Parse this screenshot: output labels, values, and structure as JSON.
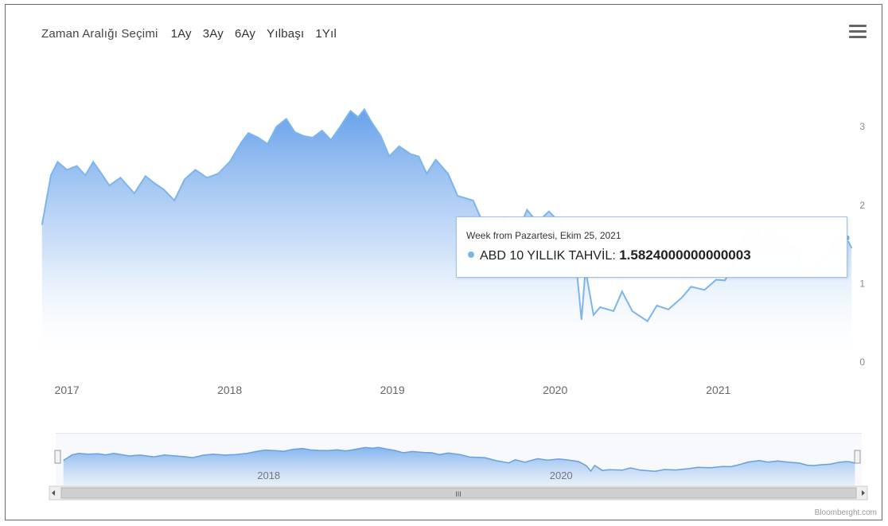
{
  "range_selector": {
    "label": "Zaman Aralığı Seçimi",
    "buttons": [
      "1Ay",
      "3Ay",
      "6Ay",
      "Yılbaşı",
      "1Yıl"
    ]
  },
  "tooltip": {
    "header": "Week from Pazartesi, Ekim 25, 2021",
    "series_label": "ABD 10 YILLIK TAHVİL:",
    "value": "1.5824000000000003"
  },
  "credits": "Bloomberght.com",
  "navigator": {
    "labels": [
      {
        "text": "2018",
        "date": "2018-03-01"
      },
      {
        "text": "2020",
        "date": "2020-01-01"
      }
    ],
    "scrollbar_grip": "III"
  },
  "colors": {
    "line": "#7cb5ec",
    "fill_top": "#6fa7ec",
    "fill_bottom": "#ffffff",
    "axis_text": "#666666"
  },
  "chart_data": {
    "type": "area",
    "series": [
      {
        "name": "ABD 10 YILLIK TAHVİL",
        "points": [
          [
            "2016-11-15",
            1.75
          ],
          [
            "2016-12-05",
            2.38
          ],
          [
            "2016-12-20",
            2.55
          ],
          [
            "2017-01-10",
            2.45
          ],
          [
            "2017-02-01",
            2.5
          ],
          [
            "2017-02-20",
            2.38
          ],
          [
            "2017-03-10",
            2.55
          ],
          [
            "2017-03-25",
            2.43
          ],
          [
            "2017-04-15",
            2.25
          ],
          [
            "2017-05-10",
            2.35
          ],
          [
            "2017-06-10",
            2.15
          ],
          [
            "2017-07-05",
            2.37
          ],
          [
            "2017-07-25",
            2.28
          ],
          [
            "2017-08-15",
            2.2
          ],
          [
            "2017-09-08",
            2.06
          ],
          [
            "2017-10-01",
            2.33
          ],
          [
            "2017-10-25",
            2.45
          ],
          [
            "2017-11-20",
            2.35
          ],
          [
            "2017-12-15",
            2.4
          ],
          [
            "2018-01-10",
            2.55
          ],
          [
            "2018-02-05",
            2.8
          ],
          [
            "2018-02-21",
            2.92
          ],
          [
            "2018-03-15",
            2.86
          ],
          [
            "2018-04-05",
            2.78
          ],
          [
            "2018-04-25",
            3.0
          ],
          [
            "2018-05-17",
            3.1
          ],
          [
            "2018-06-05",
            2.93
          ],
          [
            "2018-06-25",
            2.88
          ],
          [
            "2018-07-15",
            2.86
          ],
          [
            "2018-08-05",
            2.95
          ],
          [
            "2018-08-25",
            2.83
          ],
          [
            "2018-09-15",
            3.0
          ],
          [
            "2018-10-08",
            3.2
          ],
          [
            "2018-10-25",
            3.12
          ],
          [
            "2018-11-08",
            3.22
          ],
          [
            "2018-11-25",
            3.05
          ],
          [
            "2018-12-15",
            2.88
          ],
          [
            "2019-01-03",
            2.62
          ],
          [
            "2019-01-25",
            2.75
          ],
          [
            "2019-02-20",
            2.65
          ],
          [
            "2019-03-10",
            2.62
          ],
          [
            "2019-03-28",
            2.4
          ],
          [
            "2019-04-17",
            2.58
          ],
          [
            "2019-05-15",
            2.4
          ],
          [
            "2019-06-05",
            2.12
          ],
          [
            "2019-07-10",
            2.06
          ],
          [
            "2019-08-05",
            1.72
          ],
          [
            "2019-09-03",
            1.47
          ],
          [
            "2019-09-18",
            1.82
          ],
          [
            "2019-10-10",
            1.55
          ],
          [
            "2019-11-08",
            1.94
          ],
          [
            "2019-12-01",
            1.78
          ],
          [
            "2019-12-27",
            1.92
          ],
          [
            "2020-01-20",
            1.78
          ],
          [
            "2020-02-10",
            1.62
          ],
          [
            "2020-02-28",
            1.13
          ],
          [
            "2020-03-09",
            0.54
          ],
          [
            "2020-03-18",
            1.18
          ],
          [
            "2020-04-05",
            0.6
          ],
          [
            "2020-04-20",
            0.7
          ],
          [
            "2020-05-20",
            0.65
          ],
          [
            "2020-06-08",
            0.9
          ],
          [
            "2020-07-01",
            0.65
          ],
          [
            "2020-08-04",
            0.52
          ],
          [
            "2020-08-25",
            0.72
          ],
          [
            "2020-09-20",
            0.67
          ],
          [
            "2020-10-20",
            0.82
          ],
          [
            "2020-11-10",
            0.96
          ],
          [
            "2020-12-10",
            0.92
          ],
          [
            "2021-01-05",
            1.05
          ],
          [
            "2021-01-25",
            1.04
          ],
          [
            "2021-02-15",
            1.3
          ],
          [
            "2021-03-05",
            1.57
          ],
          [
            "2021-03-31",
            1.74
          ],
          [
            "2021-04-20",
            1.56
          ],
          [
            "2021-05-12",
            1.69
          ],
          [
            "2021-06-05",
            1.55
          ],
          [
            "2021-06-30",
            1.45
          ],
          [
            "2021-07-20",
            1.2
          ],
          [
            "2021-08-04",
            1.17
          ],
          [
            "2021-08-20",
            1.26
          ],
          [
            "2021-09-10",
            1.33
          ],
          [
            "2021-09-28",
            1.52
          ],
          [
            "2021-10-15",
            1.62
          ],
          [
            "2021-10-25",
            1.58
          ],
          [
            "2021-11-05",
            1.45
          ]
        ]
      }
    ],
    "x_ticks": [
      {
        "label": "2017",
        "date": "2017-01-01"
      },
      {
        "label": "2018",
        "date": "2018-01-01"
      },
      {
        "label": "2019",
        "date": "2019-01-01"
      },
      {
        "label": "2020",
        "date": "2020-01-01"
      },
      {
        "label": "2021",
        "date": "2021-01-01"
      }
    ],
    "y_ticks": [
      0,
      1,
      2,
      3
    ],
    "ylim": [
      0,
      3.6
    ],
    "xlim": [
      "2016-11-10",
      "2021-11-08"
    ],
    "highlight": {
      "date": "2021-10-25",
      "value": 1.5824
    },
    "grid": false,
    "y_axis_side": "right"
  }
}
